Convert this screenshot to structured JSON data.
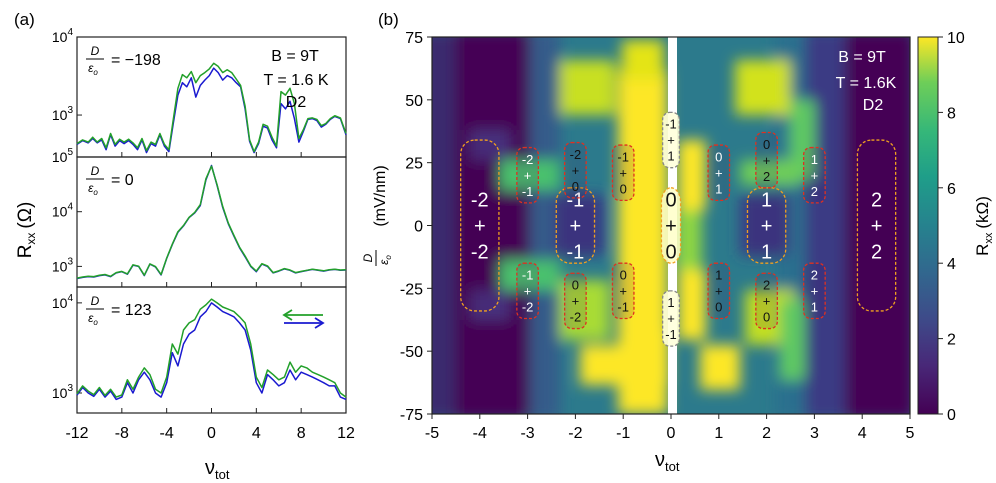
{
  "chart_data": [
    {
      "type": "line",
      "panel_label": "(a)",
      "xlabel": "ν",
      "xlabel_sub": "tot",
      "ylabel": "R",
      "ylabel_sub": "xx",
      "ylabel_unit": "(Ω)",
      "xlim": [
        -12,
        12
      ],
      "xticks": [
        -12,
        -8,
        -4,
        0,
        4,
        8,
        12
      ],
      "xtick_labels": [
        "-12",
        "-8",
        "-4",
        "0",
        "4",
        "8",
        "12"
      ],
      "yscale": "log",
      "legend": {
        "arrow_left_color": "#22a02a",
        "arrow_right_color": "#1a1ad0"
      },
      "series_colors": {
        "forward": "#1a1ad0",
        "backward": "#22a02a"
      },
      "subplots": [
        {
          "annotation_prefix_num": "D",
          "annotation_prefix_den": "ε",
          "annotation_prefix_den_sub": "o",
          "annotation_value": "= −198",
          "side_labels": [
            "B = 9T",
            "T = 1.6 K",
            "D2"
          ],
          "ylim": [
            290,
            10000
          ],
          "yticks": [
            {
              "value": 1000,
              "base": "10",
              "exp": "3"
            },
            {
              "value": 10000,
              "base": "10",
              "exp": "4"
            }
          ],
          "x": [
            -12,
            -11.5,
            -11,
            -10.6,
            -10.2,
            -9.8,
            -9.4,
            -9,
            -8.6,
            -8.2,
            -7.8,
            -7.4,
            -7,
            -6.6,
            -6.2,
            -5.8,
            -5.4,
            -5,
            -4.6,
            -4.2,
            -3.8,
            -3.4,
            -3,
            -2.6,
            -2.2,
            -1.8,
            -1.4,
            -1,
            -0.6,
            -0.2,
            0.2,
            0.6,
            1,
            1.4,
            1.8,
            2.2,
            2.6,
            3,
            3.4,
            3.8,
            4.2,
            4.6,
            5,
            5.4,
            5.8,
            6.2,
            6.6,
            7,
            7.4,
            7.8,
            8.2,
            8.6,
            9,
            9.4,
            9.8,
            10.2,
            10.6,
            11,
            11.5,
            12
          ],
          "series": [
            {
              "name": "forward",
              "values": [
                420,
                470,
                440,
                500,
                440,
                480,
                360,
                560,
                400,
                470,
                430,
                470,
                420,
                360,
                480,
                330,
                430,
                400,
                560,
                400,
                340,
                800,
                1800,
                2600,
                2300,
                3000,
                1700,
                2400,
                2800,
                3200,
                4000,
                3500,
                2800,
                3200,
                3000,
                2600,
                2300,
                1200,
                460,
                330,
                430,
                720,
                680,
                480,
                380,
                1400,
                1200,
                1500,
                900,
                450,
                620,
                880,
                900,
                850,
                700,
                760,
                880,
                960,
                900,
                560
              ]
            },
            {
              "name": "backward",
              "values": [
                430,
                480,
                450,
                520,
                450,
                500,
                380,
                580,
                420,
                490,
                450,
                490,
                440,
                380,
                500,
                350,
                450,
                420,
                580,
                420,
                360,
                900,
                2200,
                3300,
                3000,
                3600,
                2600,
                3200,
                3500,
                3900,
                4600,
                4200,
                3500,
                3800,
                3500,
                2900,
                2400,
                1300,
                480,
                340,
                450,
                760,
                720,
                520,
                400,
                2000,
                1800,
                2200,
                1400,
                500,
                650,
                900,
                920,
                880,
                730,
                780,
                900,
                980,
                920,
                580
              ]
            }
          ]
        },
        {
          "annotation_prefix_num": "D",
          "annotation_prefix_den": "ε",
          "annotation_prefix_den_sub": "o",
          "annotation_value": "= 0",
          "side_labels": [],
          "ylim": [
            420,
            100000
          ],
          "yticks": [
            {
              "value": 1000,
              "base": "10",
              "exp": "3"
            },
            {
              "value": 10000,
              "base": "10",
              "exp": "4"
            },
            {
              "value": 100000,
              "base": "10",
              "exp": "5"
            }
          ],
          "x": [
            -12,
            -11.5,
            -11,
            -10.5,
            -10,
            -9.5,
            -9,
            -8.5,
            -8,
            -7.5,
            -7,
            -6.5,
            -6,
            -5.5,
            -5,
            -4.5,
            -4,
            -3.5,
            -3,
            -2.5,
            -2,
            -1.5,
            -1,
            -0.5,
            0,
            0.5,
            1,
            1.5,
            2,
            2.5,
            3,
            3.5,
            4,
            4.5,
            5,
            5.5,
            6,
            6.5,
            7,
            7.5,
            8,
            8.5,
            9,
            9.5,
            10,
            10.5,
            11,
            11.5,
            12
          ],
          "series": [
            {
              "name": "forward",
              "values": [
                600,
                630,
                650,
                640,
                680,
                700,
                650,
                760,
                800,
                720,
                1050,
                1000,
                680,
                1100,
                980,
                700,
                1400,
                2500,
                4200,
                5500,
                7800,
                9500,
                13000,
                38000,
                70000,
                30000,
                12000,
                6000,
                3600,
                2200,
                1500,
                1000,
                800,
                1100,
                1000,
                760,
                820,
                900,
                850,
                760,
                800,
                840,
                880,
                850,
                820,
                860,
                880,
                850,
                860
              ]
            },
            {
              "name": "backward",
              "values": [
                610,
                640,
                660,
                650,
                690,
                710,
                660,
                770,
                810,
                730,
                1070,
                1010,
                690,
                1110,
                990,
                710,
                1420,
                2550,
                4300,
                5600,
                7900,
                9700,
                13500,
                40000,
                68000,
                31000,
                12500,
                6200,
                3700,
                2250,
                1550,
                1020,
                820,
                1120,
                1020,
                770,
                830,
                910,
                860,
                770,
                810,
                850,
                890,
                860,
                830,
                870,
                890,
                860,
                870
              ]
            }
          ]
        },
        {
          "annotation_prefix_num": "D",
          "annotation_prefix_den": "ε",
          "annotation_prefix_den_sub": "o",
          "annotation_value": "= 123",
          "side_labels": [],
          "ylim": [
            600,
            15000
          ],
          "yticks": [
            {
              "value": 1000,
              "base": "10",
              "exp": "3"
            },
            {
              "value": 10000,
              "base": "10",
              "exp": "4"
            }
          ],
          "x": [
            -12,
            -11.5,
            -11,
            -10.5,
            -10,
            -9.5,
            -9,
            -8.5,
            -8,
            -7.5,
            -7,
            -6.5,
            -6,
            -5.5,
            -5,
            -4.5,
            -4,
            -3.5,
            -3,
            -2.5,
            -2,
            -1.5,
            -1,
            -0.5,
            0,
            0.5,
            1,
            1.5,
            2,
            2.5,
            3,
            3.5,
            4,
            4.5,
            5,
            5.5,
            6,
            6.5,
            7,
            7.5,
            8,
            8.5,
            9,
            9.5,
            10,
            10.5,
            11,
            11.5,
            12
          ],
          "series": [
            {
              "name": "forward",
              "values": [
                950,
                1150,
                1000,
                920,
                1100,
                900,
                1050,
                850,
                900,
                1300,
                1000,
                1400,
                1700,
                1400,
                1000,
                900,
                1300,
                2800,
                2000,
                3500,
                4500,
                5000,
                7000,
                8000,
                10000,
                9000,
                8000,
                7500,
                7000,
                6000,
                5000,
                3000,
                1300,
                1000,
                1600,
                1400,
                1200,
                1300,
                1800,
                1400,
                1700,
                1600,
                1500,
                1400,
                1300,
                1200,
                1200,
                900,
                850
              ]
            },
            {
              "name": "backward",
              "values": [
                980,
                1200,
                1050,
                960,
                1150,
                940,
                1100,
                900,
                950,
                1400,
                1100,
                1500,
                1900,
                1600,
                1100,
                1000,
                1500,
                3500,
                2700,
                5000,
                6000,
                6500,
                8500,
                9500,
                11000,
                10000,
                9000,
                8500,
                8000,
                7000,
                6000,
                3500,
                1500,
                1150,
                1800,
                1600,
                1400,
                1500,
                2200,
                1700,
                2000,
                1900,
                1700,
                1600,
                1500,
                1400,
                1300,
                1000,
                900
              ]
            }
          ]
        }
      ]
    },
    {
      "type": "heatmap",
      "panel_label": "(b)",
      "xlabel": "ν",
      "xlabel_sub": "tot",
      "ylabel_frac_num": "D",
      "ylabel_frac_den": "ε",
      "ylabel_frac_den_sub": "o",
      "ylabel_unit": "(mV/nm)",
      "xlim": [
        -5,
        5
      ],
      "ylim": [
        -75,
        75
      ],
      "xticks": [
        -5,
        -4,
        -3,
        -2,
        -1,
        0,
        1,
        2,
        3,
        4,
        5
      ],
      "xtick_labels": [
        "-5",
        "-4",
        "-3",
        "-2",
        "-1",
        "0",
        "1",
        "2",
        "3",
        "4",
        "5"
      ],
      "yticks": [
        -75,
        -50,
        -25,
        0,
        25,
        50,
        75
      ],
      "ytick_labels": [
        "-75",
        "-50",
        "-25",
        "0",
        "25",
        "50",
        "75"
      ],
      "annotations": [
        "B = 9T",
        "T = 1.6K",
        "D2"
      ],
      "colorbar": {
        "label": "R",
        "label_sub": "xx",
        "label_unit": "(kΩ)",
        "range": [
          0,
          10
        ],
        "ticks": [
          0,
          2,
          4,
          6,
          8,
          10
        ],
        "tick_labels": [
          "0",
          "2",
          "4",
          "6",
          "8",
          "10"
        ],
        "colormap": "viridis"
      },
      "boxes": [
        {
          "x": -4,
          "y": 0,
          "w_units": 0.8,
          "h_units": 68,
          "text": [
            "-2",
            "+",
            "-2"
          ],
          "border": "#f0a020",
          "text_color": "#ffffff",
          "size": "large"
        },
        {
          "x": -2,
          "y": 0,
          "w_units": 0.8,
          "h_units": 30,
          "text": [
            "-1",
            "+",
            "-1"
          ],
          "border": "#f0a020",
          "text_color": "#ffffff",
          "size": "large"
        },
        {
          "x": 0,
          "y": 0,
          "w_units": 0.4,
          "h_units": 30,
          "text": [
            "0",
            "+",
            "0"
          ],
          "border": "#f0a020",
          "text_color": "#111111",
          "size": "large"
        },
        {
          "x": 2,
          "y": 0,
          "w_units": 0.8,
          "h_units": 30,
          "text": [
            "1",
            "+",
            "1"
          ],
          "border": "#f0a020",
          "text_color": "#ffffff",
          "size": "large"
        },
        {
          "x": 4.3,
          "y": 0,
          "w_units": 0.8,
          "h_units": 68,
          "text": [
            "2",
            "+",
            "2"
          ],
          "border": "#f0a020",
          "text_color": "#ffffff",
          "size": "large"
        },
        {
          "x": -3,
          "y": 20,
          "w_units": 0.45,
          "h_units": 22,
          "text": [
            "-2",
            "+",
            "-1"
          ],
          "border": "#e03020",
          "text_color": "#ffffff",
          "size": "small"
        },
        {
          "x": -2,
          "y": 22,
          "w_units": 0.45,
          "h_units": 22,
          "text": [
            "-2",
            "+",
            "0"
          ],
          "border": "#e03020",
          "text_color": "#111111",
          "size": "small"
        },
        {
          "x": -1,
          "y": 21,
          "w_units": 0.45,
          "h_units": 22,
          "text": [
            "-1",
            "+",
            "0"
          ],
          "border": "#e03020",
          "text_color": "#111111",
          "size": "small"
        },
        {
          "x": 0,
          "y": 34,
          "w_units": 0.35,
          "h_units": 22,
          "text": [
            "-1",
            "+",
            "1"
          ],
          "border": "#888888",
          "text_color": "#111111",
          "size": "small"
        },
        {
          "x": 1,
          "y": 21,
          "w_units": 0.45,
          "h_units": 22,
          "text": [
            "0",
            "+",
            "1"
          ],
          "border": "#e03020",
          "text_color": "#ffffff",
          "size": "small"
        },
        {
          "x": 2,
          "y": 26,
          "w_units": 0.45,
          "h_units": 22,
          "text": [
            "0",
            "+",
            "2"
          ],
          "border": "#e03020",
          "text_color": "#111111",
          "size": "small"
        },
        {
          "x": 3,
          "y": 20,
          "w_units": 0.45,
          "h_units": 22,
          "text": [
            "1",
            "+",
            "2"
          ],
          "border": "#e03020",
          "text_color": "#ffffff",
          "size": "small"
        },
        {
          "x": -3,
          "y": -26,
          "w_units": 0.45,
          "h_units": 22,
          "text": [
            "-1",
            "+",
            "-2"
          ],
          "border": "#e03020",
          "text_color": "#ffffff",
          "size": "small"
        },
        {
          "x": -2,
          "y": -30,
          "w_units": 0.45,
          "h_units": 22,
          "text": [
            "0",
            "+",
            "-2"
          ],
          "border": "#e03020",
          "text_color": "#111111",
          "size": "small"
        },
        {
          "x": -1,
          "y": -26,
          "w_units": 0.45,
          "h_units": 22,
          "text": [
            "0",
            "+",
            "-1"
          ],
          "border": "#e03020",
          "text_color": "#111111",
          "size": "small"
        },
        {
          "x": 0,
          "y": -37,
          "w_units": 0.35,
          "h_units": 22,
          "text": [
            "1",
            "+",
            "-1"
          ],
          "border": "#888888",
          "text_color": "#111111",
          "size": "small"
        },
        {
          "x": 1,
          "y": -26,
          "w_units": 0.45,
          "h_units": 22,
          "text": [
            "1",
            "+",
            "0"
          ],
          "border": "#e03020",
          "text_color": "#111111",
          "size": "small"
        },
        {
          "x": 2,
          "y": -30,
          "w_units": 0.45,
          "h_units": 22,
          "text": [
            "2",
            "+",
            "0"
          ],
          "border": "#e03020",
          "text_color": "#111111",
          "size": "small"
        },
        {
          "x": 3,
          "y": -26,
          "w_units": 0.45,
          "h_units": 22,
          "text": [
            "2",
            "+",
            "1"
          ],
          "border": "#e03020",
          "text_color": "#ffffff",
          "size": "small"
        }
      ]
    }
  ]
}
